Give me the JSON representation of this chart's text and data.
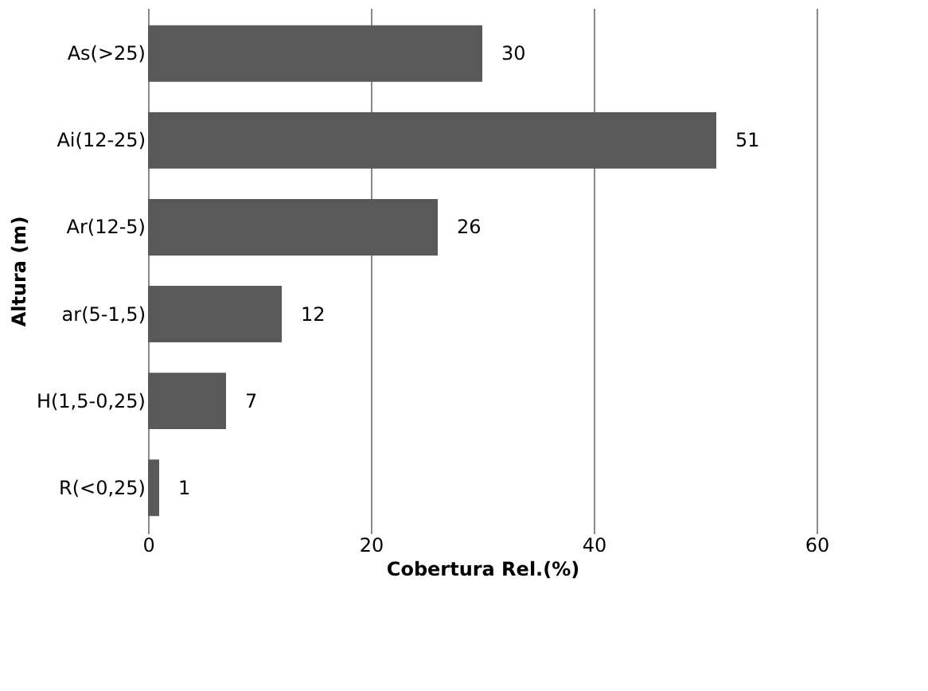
{
  "chart_data": {
    "type": "bar",
    "orientation": "horizontal",
    "xlabel": "Cobertura Rel.(%)",
    "ylabel": "Altura (m)",
    "categories": [
      "As(>25)",
      "Ai(12-25)",
      "Ar(12-5)",
      "ar(5-1,5)",
      "H(1,5-0,25)",
      "R(<0,25)"
    ],
    "values": [
      30,
      51,
      26,
      12,
      7,
      1
    ],
    "color": "#595959",
    "xlim": [
      0,
      60
    ],
    "xticks": [
      0,
      20,
      40,
      60
    ],
    "grid": "x",
    "data_labels": true
  }
}
